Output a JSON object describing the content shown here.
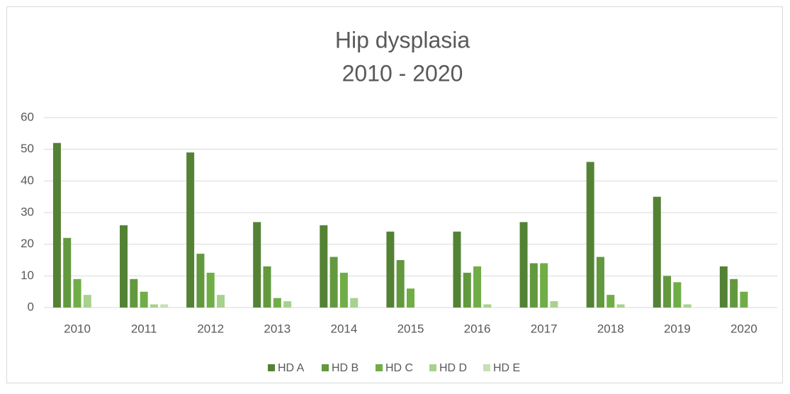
{
  "chart_data": {
    "type": "bar",
    "title": "Hip dysplasia",
    "subtitle": "2010 - 2020",
    "categories": [
      "2010",
      "2011",
      "2012",
      "2013",
      "2014",
      "2015",
      "2016",
      "2017",
      "2018",
      "2019",
      "2020"
    ],
    "series": [
      {
        "name": "HD A",
        "color": "#548235",
        "values": [
          52,
          26,
          49,
          27,
          26,
          24,
          24,
          27,
          46,
          35,
          13
        ]
      },
      {
        "name": "HD B",
        "color": "#62993e",
        "values": [
          22,
          9,
          17,
          13,
          16,
          15,
          11,
          14,
          16,
          10,
          9
        ]
      },
      {
        "name": "HD C",
        "color": "#70ad47",
        "values": [
          9,
          5,
          11,
          3,
          11,
          6,
          13,
          14,
          4,
          8,
          5
        ]
      },
      {
        "name": "HD D",
        "color": "#a9d18e",
        "values": [
          4,
          1,
          4,
          2,
          3,
          0,
          1,
          2,
          1,
          1,
          0
        ]
      },
      {
        "name": "HD E",
        "color": "#c5e0b4",
        "values": [
          0,
          1,
          0,
          0,
          0,
          0,
          0,
          0,
          0,
          0,
          0
        ]
      }
    ],
    "ylim": [
      0,
      60
    ],
    "yticks": [
      0,
      10,
      20,
      30,
      40,
      50,
      60
    ],
    "grid": true,
    "legend": "bottom"
  }
}
